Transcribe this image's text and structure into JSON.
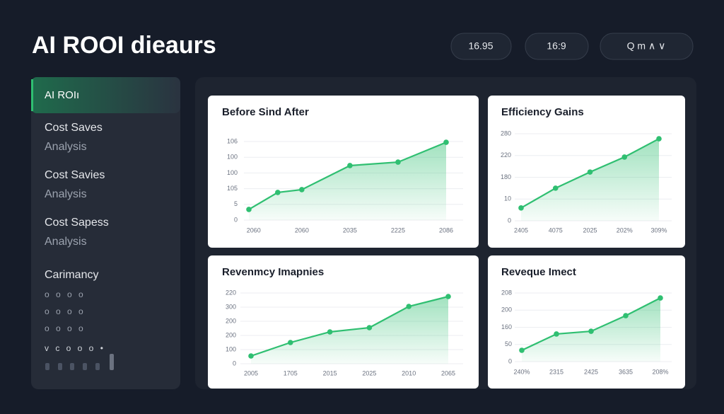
{
  "header": {
    "title": "AI ROOI dieaurs",
    "buttons": [
      "16.95",
      "16:9",
      "Q m ∧ ∨"
    ]
  },
  "sidebar": {
    "items": [
      {
        "label": "AI ROIı"
      },
      {
        "label": "Cost Saves",
        "sublabel": "Analysis"
      },
      {
        "label": "Cost Savies",
        "sublabel": "Analysis"
      },
      {
        "label": "Cost Sapess",
        "sublabel": "Analysis"
      }
    ],
    "section": "Carimancy",
    "dot_rows": [
      "o o o o",
      "o o o o",
      "o o o o",
      "v c o o o •"
    ]
  },
  "charts": [
    {
      "type": "line",
      "title": "Before Sind After",
      "color": "#2fbf71",
      "x": [
        -0.1,
        0.5,
        1,
        2,
        3,
        4
      ],
      "values": [
        0.68,
        1.76,
        1.94,
        3.47,
        3.69,
        4.95
      ],
      "xlim": [
        -0.1,
        4
      ],
      "xticks": [
        {
          "value": 0,
          "label": "2060"
        },
        {
          "value": 1,
          "label": "2060"
        },
        {
          "value": 2,
          "label": "2035"
        },
        {
          "value": 3,
          "label": "2225"
        },
        {
          "value": 4,
          "label": "2086"
        }
      ],
      "ylim": [
        0,
        5
      ],
      "yticks": [
        0,
        {
          "value": 1,
          "label": "5"
        },
        {
          "value": 2,
          "label": "105"
        },
        {
          "value": 3,
          "label": "100"
        },
        {
          "value": 4,
          "label": "100"
        },
        {
          "value": 5,
          "label": "106"
        }
      ],
      "grid": true
    },
    {
      "type": "line",
      "title": "Efficiency Gains",
      "color": "#2fbf71",
      "categories": [
        "2405",
        "4075",
        "2025",
        "202%",
        "309%"
      ],
      "values": [
        0.59,
        1.5,
        2.24,
        2.93,
        3.77
      ],
      "ylim": [
        0,
        4
      ],
      "yticks": [
        0,
        {
          "value": 1,
          "label": "10"
        },
        {
          "value": 2,
          "label": "180"
        },
        {
          "value": 3,
          "label": "220"
        },
        {
          "value": 4,
          "label": "280"
        }
      ],
      "grid": true
    },
    {
      "type": "line",
      "title": "Revenmcy Imapnies",
      "color": "#2fbf71",
      "categories": [
        "2005",
        "1705",
        "2015",
        "2025",
        "2010",
        "2065"
      ],
      "values": [
        0.55,
        1.5,
        2.25,
        2.55,
        4.05,
        4.75
      ],
      "ylim": [
        0,
        5
      ],
      "yticks": [
        0,
        {
          "value": 1,
          "label": "100"
        },
        {
          "value": 2,
          "label": "200"
        },
        {
          "value": 3,
          "label": "200"
        },
        {
          "value": 4,
          "label": "300"
        },
        {
          "value": 5,
          "label": "220"
        }
      ],
      "grid": true
    },
    {
      "type": "line",
      "title": "Reveque Imect",
      "color": "#2fbf71",
      "categories": [
        "240%",
        "2315",
        "2425",
        "3635",
        "208%"
      ],
      "values": [
        0.66,
        1.61,
        1.77,
        2.68,
        3.71
      ],
      "ylim": [
        0,
        4
      ],
      "yticks": [
        0,
        {
          "value": 1,
          "label": "50"
        },
        {
          "value": 2,
          "label": "160"
        },
        {
          "value": 3,
          "label": "200"
        },
        {
          "value": 4,
          "label": "208"
        }
      ],
      "grid": true
    }
  ]
}
